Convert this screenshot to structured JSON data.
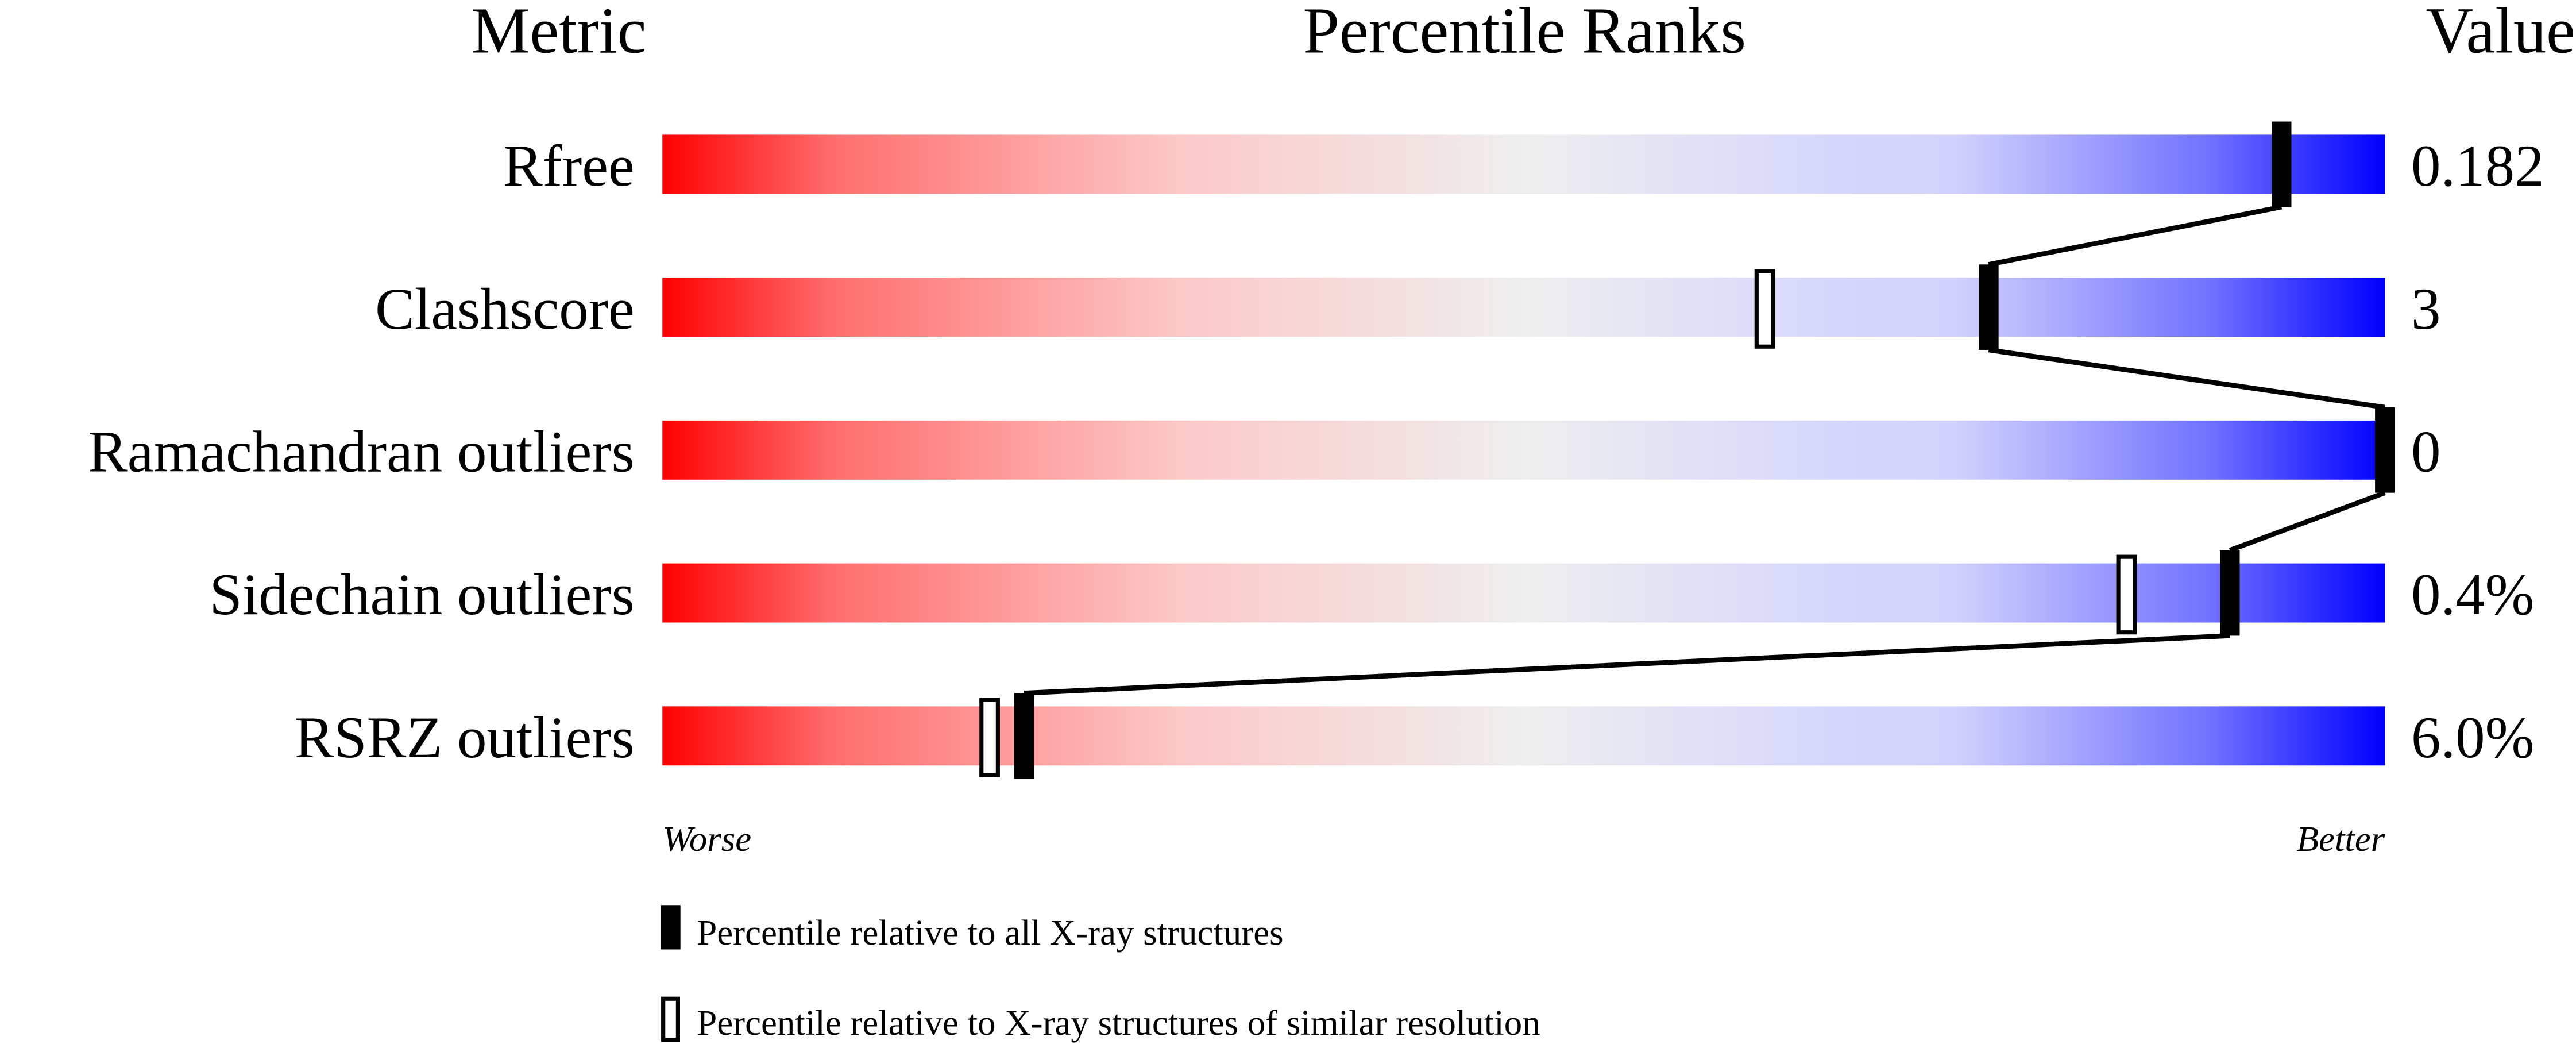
{
  "chart_data": {
    "type": "percentile-slider",
    "headers": {
      "metric": "Metric",
      "ranks": "Percentile Ranks",
      "value": "Value"
    },
    "xlim": [
      0,
      100
    ],
    "axis_labels": {
      "left": "Worse",
      "right": "Better"
    },
    "metrics": [
      {
        "name": "Rfree",
        "value": "0.182",
        "percentile_all": 94,
        "percentile_similar": null
      },
      {
        "name": "Clashscore",
        "value": "3",
        "percentile_all": 77,
        "percentile_similar": 64
      },
      {
        "name": "Ramachandran outliers",
        "value": "0",
        "percentile_all": 100,
        "percentile_similar": null
      },
      {
        "name": "Sidechain outliers",
        "value": "0.4%",
        "percentile_all": 91,
        "percentile_similar": 85
      },
      {
        "name": "RSRZ outliers",
        "value": "6.0%",
        "percentile_all": 21,
        "percentile_similar": 19
      }
    ],
    "legend": {
      "all": "Percentile relative to all X-ray structures",
      "similar": "Percentile relative to X-ray structures of similar resolution"
    },
    "colors": {
      "worse": "#ff0000",
      "middle": "#eeeeee",
      "better": "#0000ff",
      "marker": "#000000"
    }
  }
}
